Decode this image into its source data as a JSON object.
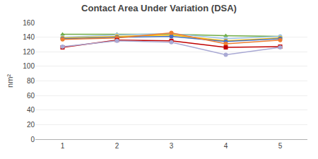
{
  "chart_data": {
    "type": "line",
    "title": "Contact Area Under Variation (DSA)",
    "ylabel": "nm²",
    "x": [
      1,
      2,
      3,
      4,
      5
    ],
    "xlim": [
      0.5,
      5.5
    ],
    "xticks": [
      1,
      2,
      3,
      4,
      5
    ],
    "ylim": [
      0,
      160
    ],
    "yticks": [
      0,
      20,
      40,
      60,
      80,
      100,
      120,
      140,
      160
    ],
    "grid": "y",
    "series": [
      {
        "color": "#70ad47",
        "marker": "triangle",
        "values": [
          144,
          144,
          144,
          142,
          141
        ]
      },
      {
        "color": "#9dc3e6",
        "marker": "circle",
        "values": [
          140,
          143,
          145,
          138,
          141
        ]
      },
      {
        "color": "#ffc000",
        "marker": "circle",
        "values": [
          139,
          141,
          143,
          135,
          139
        ]
      },
      {
        "color": "#4472c4",
        "marker": "circle",
        "values": [
          138,
          140,
          141,
          134,
          138
        ]
      },
      {
        "color": "#ed7d31",
        "marker": "circle",
        "values": [
          137,
          139,
          146,
          131,
          136
        ]
      },
      {
        "color": "#c00000",
        "marker": "square",
        "values": [
          126,
          136,
          135,
          126,
          127
        ]
      },
      {
        "color": "#a9a9d4",
        "marker": "circle",
        "values": [
          127,
          135,
          133,
          116,
          126
        ]
      }
    ]
  }
}
